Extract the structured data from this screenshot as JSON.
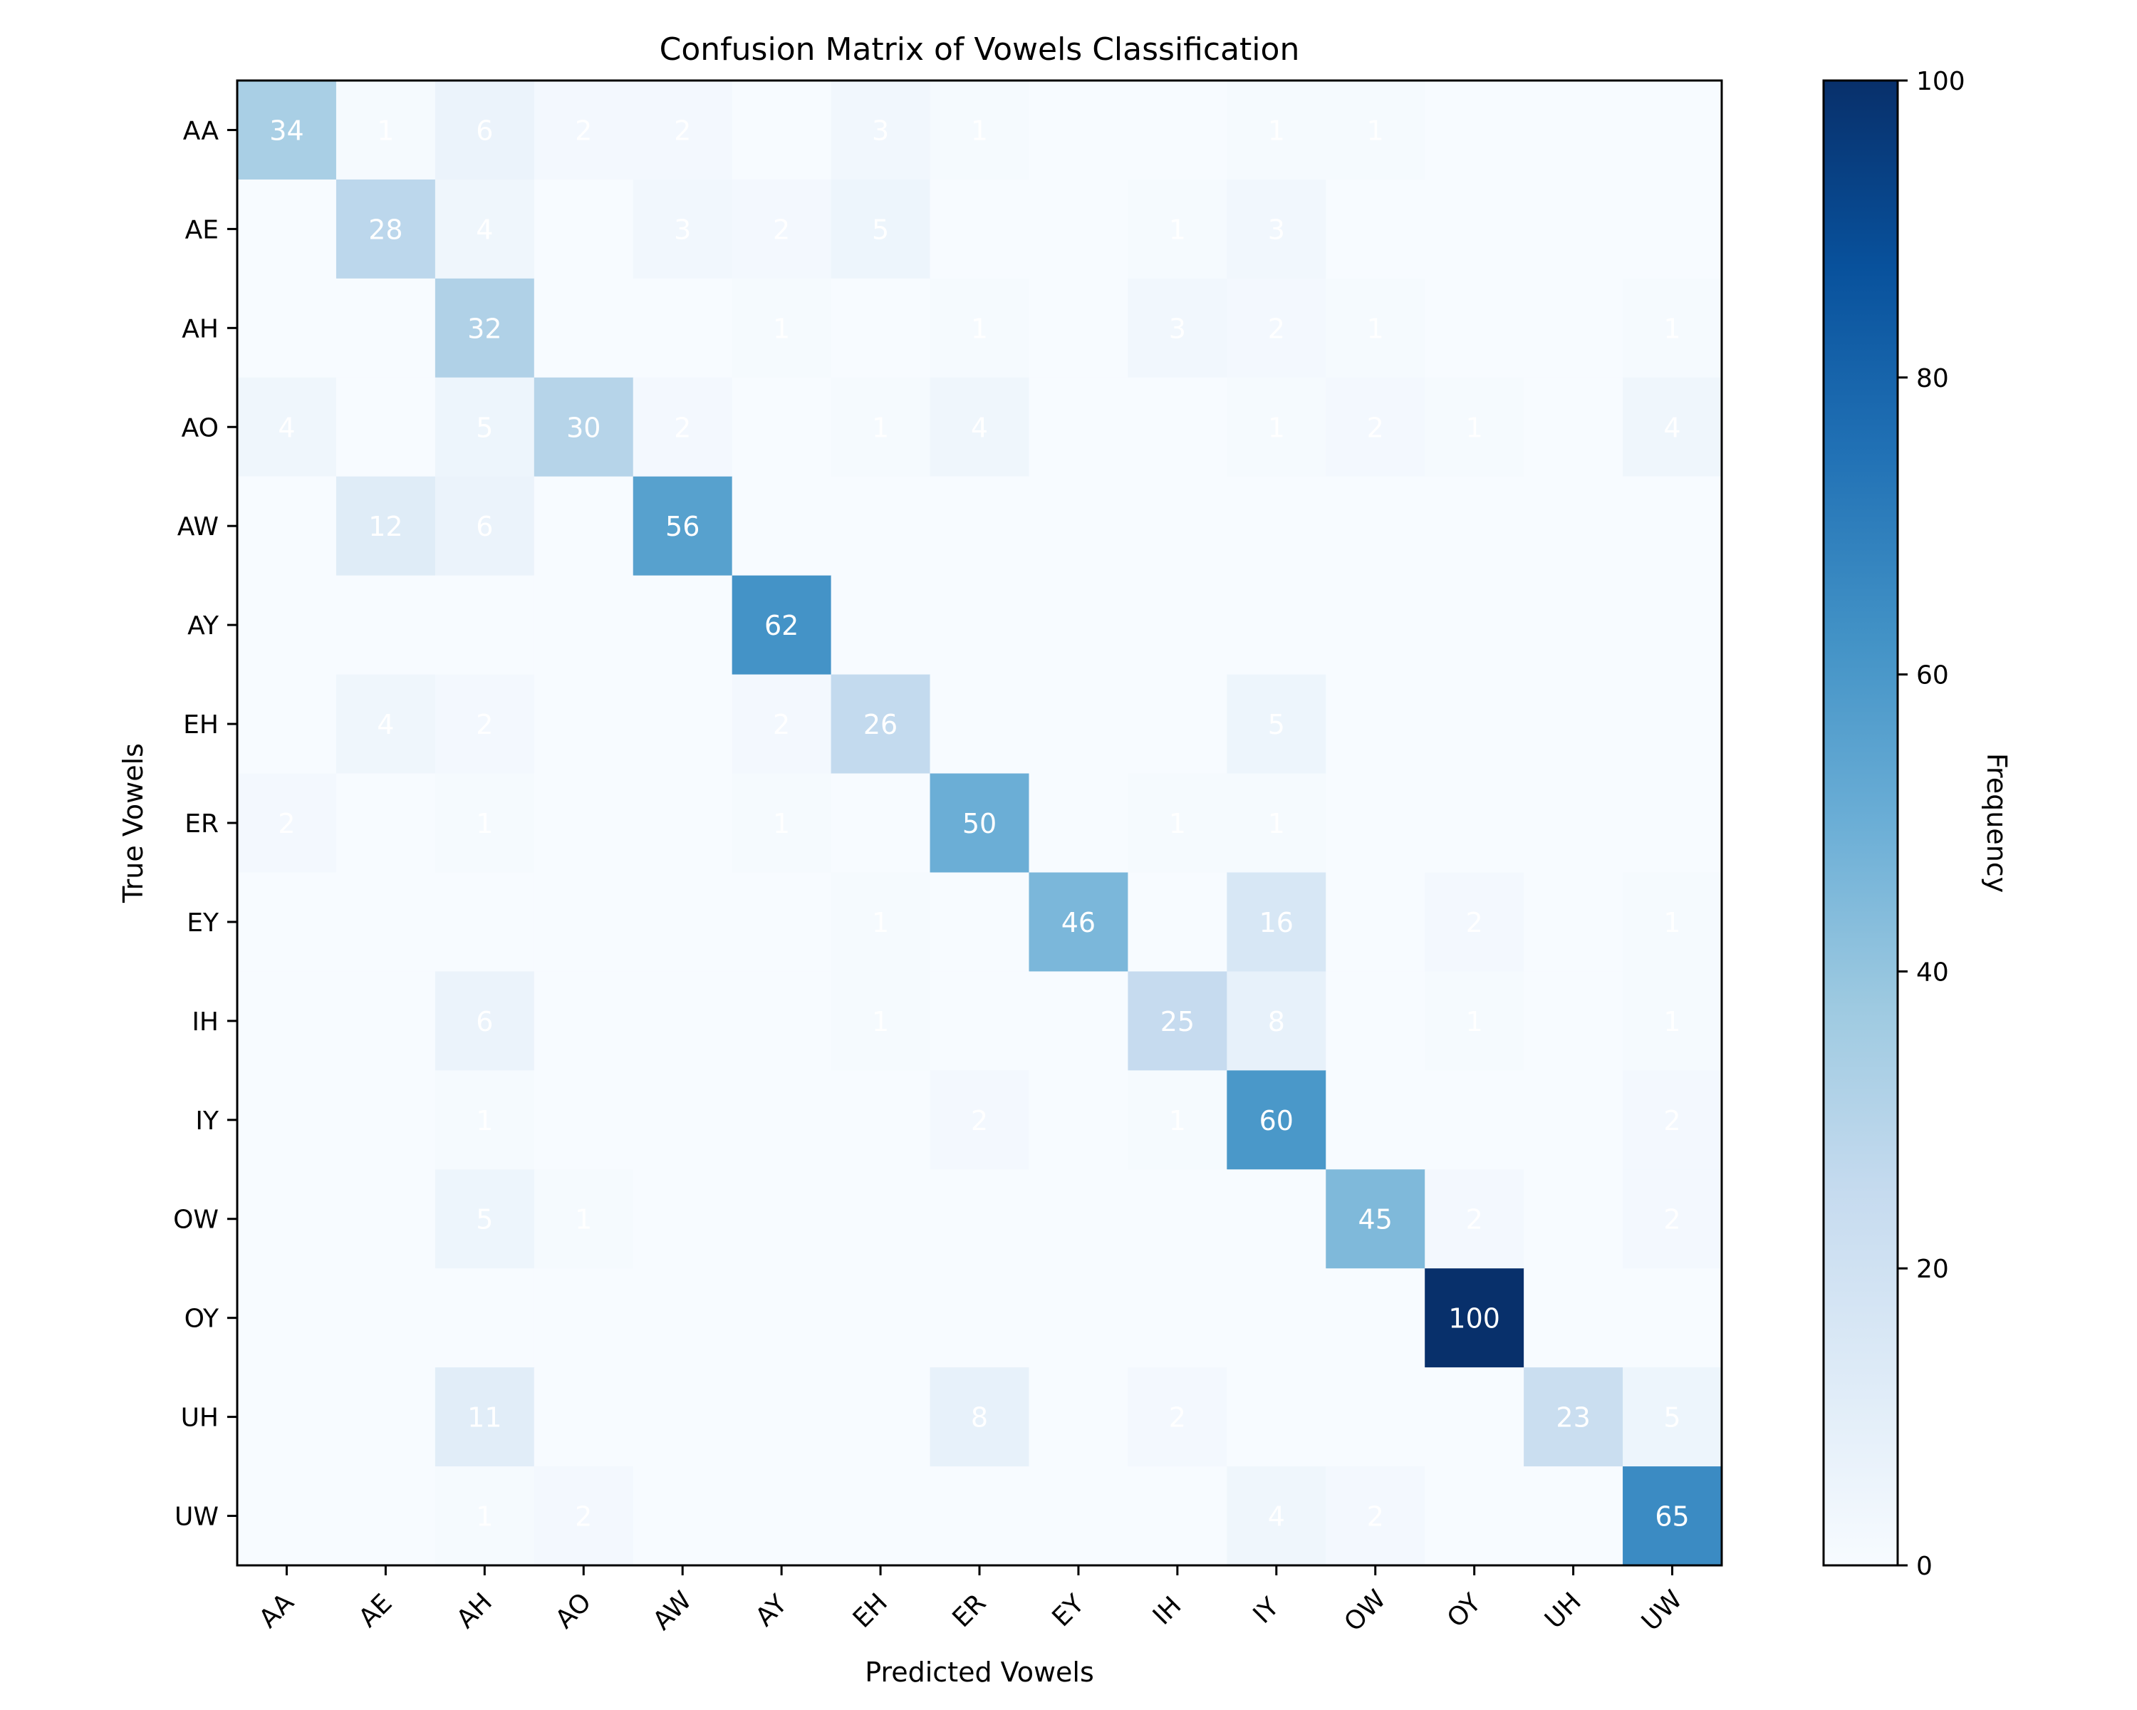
{
  "chart_data": {
    "type": "heatmap",
    "title": "Confusion Matrix of Vowels Classification",
    "xlabel": "Predicted Vowels",
    "ylabel": "True Vowels",
    "x_categories": [
      "AA",
      "AE",
      "AH",
      "AO",
      "AW",
      "AY",
      "EH",
      "ER",
      "EY",
      "IH",
      "IY",
      "OW",
      "OY",
      "UH",
      "UW"
    ],
    "y_categories": [
      "AA",
      "AE",
      "AH",
      "AO",
      "AW",
      "AY",
      "EH",
      "ER",
      "EY",
      "IH",
      "IY",
      "OW",
      "OY",
      "UH",
      "UW"
    ],
    "values": [
      [
        34,
        1,
        6,
        2,
        2,
        0,
        3,
        1,
        0,
        0,
        1,
        1,
        0,
        0,
        0
      ],
      [
        0,
        28,
        4,
        0,
        3,
        2,
        5,
        0,
        0,
        1,
        3,
        0,
        0,
        0,
        0
      ],
      [
        0,
        0,
        32,
        0,
        0,
        1,
        0,
        1,
        0,
        3,
        2,
        1,
        0,
        0,
        1
      ],
      [
        4,
        0,
        5,
        30,
        2,
        0,
        1,
        4,
        0,
        0,
        1,
        2,
        1,
        0,
        4
      ],
      [
        0,
        12,
        6,
        0,
        56,
        0,
        0,
        0,
        0,
        0,
        0,
        0,
        0,
        0,
        0
      ],
      [
        0,
        0,
        0,
        0,
        0,
        62,
        0,
        0,
        0,
        0,
        0,
        0,
        0,
        0,
        0
      ],
      [
        0,
        4,
        2,
        0,
        0,
        2,
        26,
        0,
        0,
        0,
        5,
        0,
        0,
        0,
        0
      ],
      [
        2,
        0,
        1,
        0,
        0,
        1,
        0,
        50,
        0,
        1,
        1,
        0,
        0,
        0,
        0
      ],
      [
        0,
        0,
        0,
        0,
        0,
        0,
        1,
        0,
        46,
        0,
        16,
        0,
        2,
        0,
        1
      ],
      [
        0,
        0,
        6,
        0,
        0,
        0,
        1,
        0,
        0,
        25,
        8,
        0,
        1,
        0,
        1
      ],
      [
        0,
        0,
        1,
        0,
        0,
        0,
        0,
        2,
        0,
        1,
        60,
        0,
        0,
        0,
        2
      ],
      [
        0,
        0,
        5,
        1,
        0,
        0,
        0,
        0,
        0,
        0,
        0,
        45,
        2,
        0,
        2
      ],
      [
        0,
        0,
        0,
        0,
        0,
        0,
        0,
        0,
        0,
        0,
        0,
        0,
        100,
        0,
        0
      ],
      [
        0,
        0,
        11,
        0,
        0,
        0,
        0,
        8,
        0,
        2,
        0,
        0,
        0,
        23,
        5
      ],
      [
        0,
        0,
        1,
        2,
        0,
        0,
        0,
        0,
        0,
        0,
        4,
        2,
        0,
        0,
        65
      ]
    ],
    "colorbar": {
      "label": "Frequency",
      "range": [
        0,
        100
      ],
      "ticks": [
        "0",
        "20",
        "40",
        "60",
        "80",
        "100"
      ],
      "colormap": "Blues"
    }
  }
}
